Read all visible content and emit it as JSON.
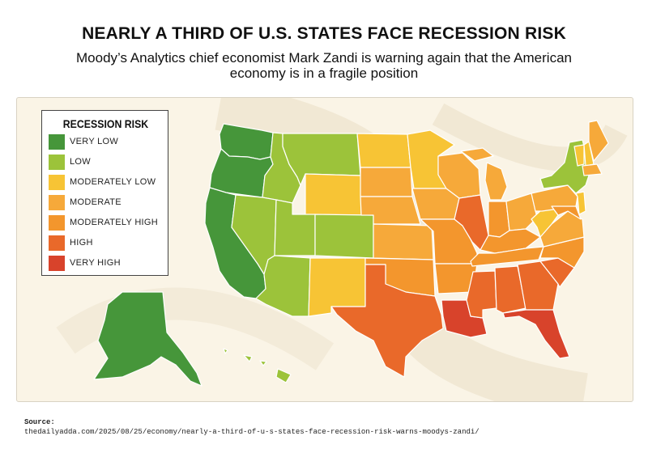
{
  "title": "NEARLY A THIRD OF U.S. STATES FACE RECESSION RISK",
  "subtitle": "Moody’s Analytics chief economist Mark Zandi is warning again that the American economy is in a fragile position",
  "legend": {
    "title": "RECESSION RISK",
    "items": [
      {
        "label": "VERY LOW",
        "color": "#46963a"
      },
      {
        "label": "LOW",
        "color": "#9cc33a"
      },
      {
        "label": "MODERATELY LOW",
        "color": "#f7c435"
      },
      {
        "label": "MODERATE",
        "color": "#f6a93a"
      },
      {
        "label": "MODERATELY HIGH",
        "color": "#f3962d"
      },
      {
        "label": "HIGH",
        "color": "#e9692a"
      },
      {
        "label": "VERY HIGH",
        "color": "#d8432b"
      }
    ]
  },
  "states": {
    "WA": "VERY LOW",
    "OR": "VERY LOW",
    "CA": "VERY LOW",
    "AK": "VERY LOW",
    "ID": "LOW",
    "MT": "LOW",
    "NV": "LOW",
    "UT": "LOW",
    "CO": "LOW",
    "AZ": "LOW",
    "HI": "LOW",
    "NY": "LOW",
    "WY": "MODERATELY LOW",
    "ND": "MODERATELY LOW",
    "MN": "MODERATELY LOW",
    "NM": "MODERATELY LOW",
    "WV": "MODERATELY LOW",
    "NH": "MODERATELY LOW",
    "VT": "MODERATELY LOW",
    "NJ": "MODERATELY LOW",
    "SD": "MODERATE",
    "NE": "MODERATE",
    "KS": "MODERATE",
    "IA": "MODERATE",
    "WI": "MODERATE",
    "MI": "MODERATE",
    "ME": "MODERATE",
    "PA": "MODERATE",
    "OH": "MODERATE",
    "VA": "MODERATE",
    "MA": "MODERATE",
    "OK": "MODERATELY HIGH",
    "MO": "MODERATELY HIGH",
    "AR": "MODERATELY HIGH",
    "IN": "MODERATELY HIGH",
    "KY": "MODERATELY HIGH",
    "TN": "MODERATELY HIGH",
    "NC": "MODERATELY HIGH",
    "MD": "MODERATELY HIGH",
    "IL": "HIGH",
    "TX": "HIGH",
    "MS": "HIGH",
    "AL": "HIGH",
    "GA": "HIGH",
    "SC": "HIGH",
    "LA": "VERY HIGH",
    "FL": "VERY HIGH"
  },
  "source": {
    "label": "Source:",
    "url": "thedailyadda.com/2025/08/25/economy/nearly-a-third-of-u-s-states-face-recession-risk-warns-moodys-zandi/"
  }
}
